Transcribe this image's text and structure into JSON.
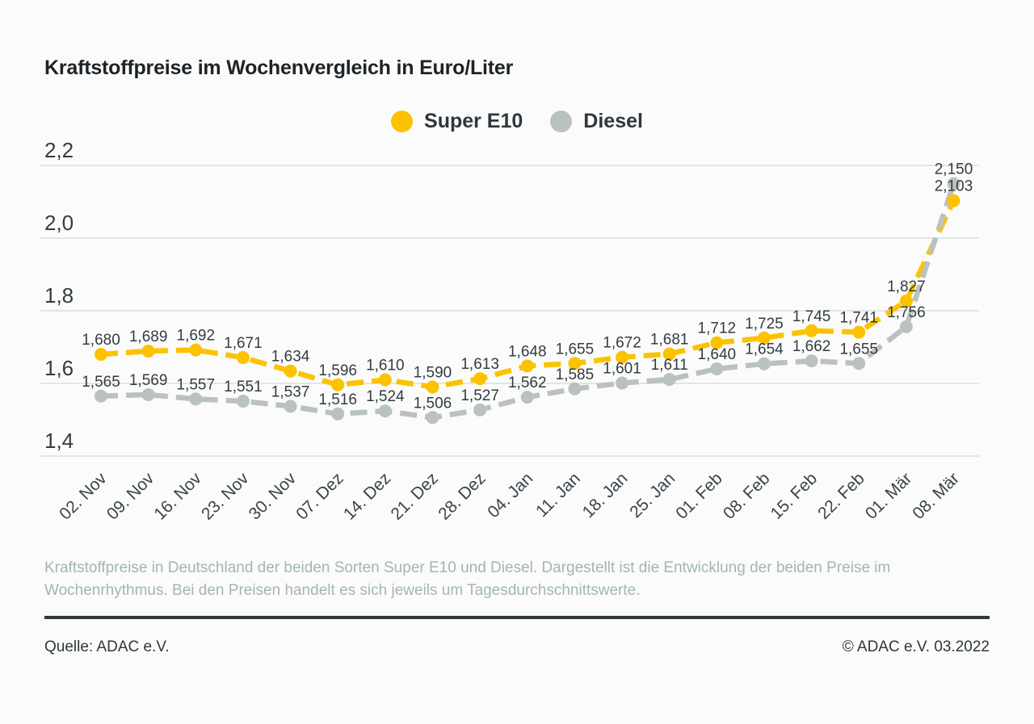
{
  "title": "Kraftstoffpreise im Wochenvergleich in Euro/Liter",
  "chart_data": {
    "type": "line",
    "categories": [
      "02. Nov",
      "09. Nov",
      "16. Nov",
      "23. Nov",
      "30. Nov",
      "07. Dez",
      "14. Dez",
      "21. Dez",
      "28. Dez",
      "04. Jan",
      "11. Jan",
      "18. Jan",
      "25. Jan",
      "01. Feb",
      "08. Feb",
      "15. Feb",
      "22. Feb",
      "01. Mär",
      "08. Mär"
    ],
    "series": [
      {
        "name": "Super E10",
        "color": "#fcc200",
        "values": [
          1.68,
          1.689,
          1.692,
          1.671,
          1.634,
          1.596,
          1.61,
          1.59,
          1.613,
          1.648,
          1.655,
          1.672,
          1.681,
          1.712,
          1.725,
          1.745,
          1.741,
          1.827,
          2.103
        ]
      },
      {
        "name": "Diesel",
        "color": "#b9c2c0",
        "values": [
          1.565,
          1.569,
          1.557,
          1.551,
          1.537,
          1.516,
          1.524,
          1.506,
          1.527,
          1.562,
          1.585,
          1.601,
          1.611,
          1.64,
          1.654,
          1.662,
          1.655,
          1.756,
          2.15
        ]
      }
    ],
    "ylabel": "",
    "xlabel": "",
    "ylim": [
      1.4,
      2.2
    ],
    "yticks": [
      1.4,
      1.6,
      1.8,
      2.0,
      2.2
    ],
    "grid": "horizontal",
    "gridline_color": "#d9dedf",
    "label_color": "#333c40",
    "axis_label_color": "#39444a",
    "legend_position": "top-center",
    "value_labels": true,
    "decimal_separator": ","
  },
  "caption": "Kraftstoffpreise in Deutschland der beiden Sorten Super E10 und Diesel. Dargestellt ist die Entwicklung der beiden Preise im Wochenrhythmus. Bei den Preisen handelt es sich jeweils um Tagesdurchschnittswerte.",
  "footer": {
    "source": "Quelle: ADAC e.V.",
    "copyright": "© ADAC e.V. 03.2022"
  }
}
